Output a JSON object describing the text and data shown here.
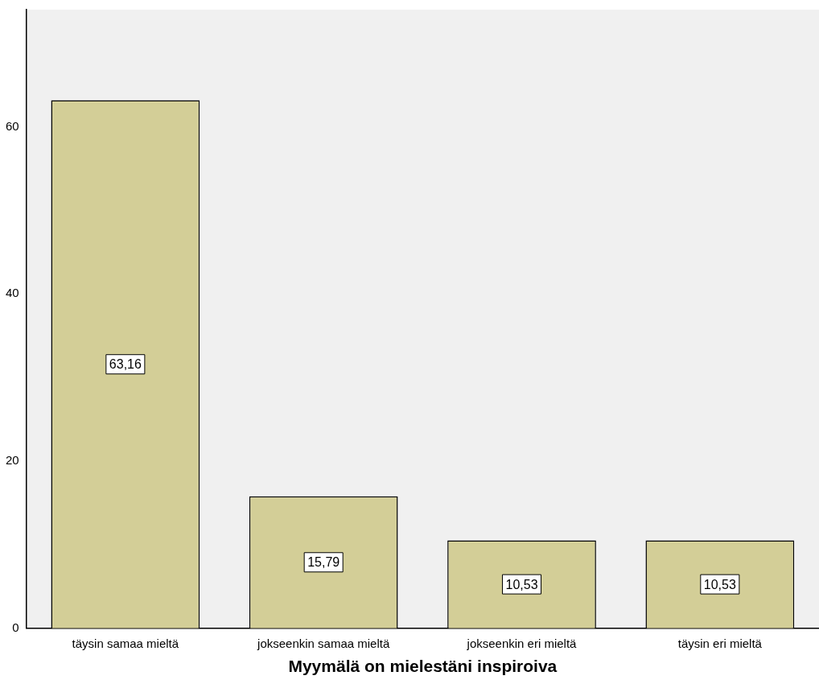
{
  "chart_data": {
    "type": "bar",
    "xlabel": "Myymälä on mielestäni inspiroiva",
    "categories": [
      "täysin samaa mieltä",
      "jokseenkin samaa mieltä",
      "jokseenkin eri mieltä",
      "täysin eri mieltä"
    ],
    "values": [
      63.16,
      15.79,
      10.53,
      10.53
    ],
    "value_labels": [
      "63,16",
      "15,79",
      "10,53",
      "10,53"
    ],
    "color": "#d3ce97",
    "ylim": [
      0,
      74
    ],
    "yticks": [
      0,
      20,
      40,
      60
    ],
    "grid": false,
    "legend": false
  }
}
